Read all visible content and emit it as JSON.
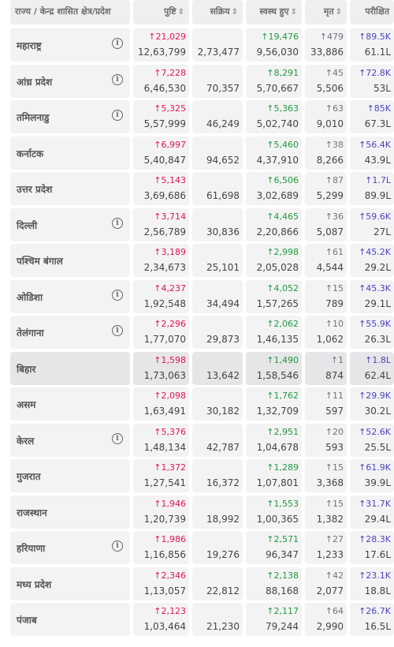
{
  "headers": {
    "state": "राज्य / केन्द्र शासित क्षेत्र/प्रदेश",
    "confirmed": "पुष्टि",
    "active": "सक्रिय",
    "recovered": "स्वस्थ हुए",
    "deceased": "मृत",
    "tested": "परीक्षित",
    "sort_glyph": "⇕"
  },
  "arrow": "↑",
  "info_glyph": "i",
  "colors": {
    "confirmed": "#e0174d",
    "recovered": "#1f9b3a",
    "deceased": "#6c757d",
    "tested": "#4b44b9"
  },
  "rows": [
    {
      "name": "महाराष्ट्र",
      "info": true,
      "conf_delta": "21,029",
      "conf": "12,63,799",
      "active": "2,73,477",
      "rec_delta": "19,476",
      "rec": "9,56,030",
      "dec_delta": "479",
      "dec": "33,886",
      "test_delta": "89.5K",
      "test": "61.1L"
    },
    {
      "name": "आंध्र प्रदेश",
      "info": true,
      "conf_delta": "7,228",
      "conf": "6,46,530",
      "active": "70,357",
      "rec_delta": "8,291",
      "rec": "5,70,667",
      "dec_delta": "45",
      "dec": "5,506",
      "test_delta": "72.8K",
      "test": "53L"
    },
    {
      "name": "तमिलनाडु",
      "info": true,
      "conf_delta": "5,325",
      "conf": "5,57,999",
      "active": "46,249",
      "rec_delta": "5,363",
      "rec": "5,02,740",
      "dec_delta": "63",
      "dec": "9,010",
      "test_delta": "85K",
      "test": "67.3L"
    },
    {
      "name": "कर्नाटक",
      "info": false,
      "conf_delta": "6,997",
      "conf": "5,40,847",
      "active": "94,652",
      "rec_delta": "5,460",
      "rec": "4,37,910",
      "dec_delta": "38",
      "dec": "8,266",
      "test_delta": "56.4K",
      "test": "43.9L"
    },
    {
      "name": "उत्तर प्रदेश",
      "info": false,
      "conf_delta": "5,143",
      "conf": "3,69,686",
      "active": "61,698",
      "rec_delta": "6,506",
      "rec": "3,02,689",
      "dec_delta": "87",
      "dec": "5,299",
      "test_delta": "1.7L",
      "test": "89.9L"
    },
    {
      "name": "दिल्ली",
      "info": true,
      "conf_delta": "3,714",
      "conf": "2,56,789",
      "active": "30,836",
      "rec_delta": "4,465",
      "rec": "2,20,866",
      "dec_delta": "36",
      "dec": "5,087",
      "test_delta": "59.6K",
      "test": "27L"
    },
    {
      "name": "पश्चिम बंगाल",
      "info": false,
      "conf_delta": "3,189",
      "conf": "2,34,673",
      "active": "25,101",
      "rec_delta": "2,998",
      "rec": "2,05,028",
      "dec_delta": "61",
      "dec": "4,544",
      "test_delta": "45.2K",
      "test": "29.2L"
    },
    {
      "name": "ओडिशा",
      "info": true,
      "conf_delta": "4,237",
      "conf": "1,92,548",
      "active": "34,494",
      "rec_delta": "4,052",
      "rec": "1,57,265",
      "dec_delta": "15",
      "dec": "789",
      "test_delta": "45.3K",
      "test": "29.1L"
    },
    {
      "name": "तेलंगाना",
      "info": true,
      "conf_delta": "2,296",
      "conf": "1,77,070",
      "active": "29,873",
      "rec_delta": "2,062",
      "rec": "1,46,135",
      "dec_delta": "10",
      "dec": "1,062",
      "test_delta": "55.9K",
      "test": "26.3L"
    },
    {
      "name": "बिहार",
      "info": false,
      "highlight": true,
      "conf_delta": "1,598",
      "conf": "1,73,063",
      "active": "13,642",
      "rec_delta": "1,490",
      "rec": "1,58,546",
      "dec_delta": "1",
      "dec": "874",
      "test_delta": "1.8L",
      "test": "62.4L"
    },
    {
      "name": "असम",
      "info": false,
      "conf_delta": "2,098",
      "conf": "1,63,491",
      "active": "30,182",
      "rec_delta": "1,762",
      "rec": "1,32,709",
      "dec_delta": "11",
      "dec": "597",
      "test_delta": "29.9K",
      "test": "30.2L"
    },
    {
      "name": "केरल",
      "info": true,
      "conf_delta": "5,376",
      "conf": "1,48,134",
      "active": "42,787",
      "rec_delta": "2,951",
      "rec": "1,04,678",
      "dec_delta": "20",
      "dec": "593",
      "test_delta": "52.6K",
      "test": "25.5L"
    },
    {
      "name": "गुजरात",
      "info": false,
      "conf_delta": "1,372",
      "conf": "1,27,541",
      "active": "16,372",
      "rec_delta": "1,289",
      "rec": "1,07,801",
      "dec_delta": "15",
      "dec": "3,368",
      "test_delta": "61.9K",
      "test": "39.9L"
    },
    {
      "name": "राजस्थान",
      "info": false,
      "conf_delta": "1,946",
      "conf": "1,20,739",
      "active": "18,992",
      "rec_delta": "1,553",
      "rec": "1,00,365",
      "dec_delta": "15",
      "dec": "1,382",
      "test_delta": "31.7K",
      "test": "29.4L"
    },
    {
      "name": "हरियाणा",
      "info": true,
      "conf_delta": "1,986",
      "conf": "1,16,856",
      "active": "19,276",
      "rec_delta": "2,571",
      "rec": "96,347",
      "dec_delta": "27",
      "dec": "1,233",
      "test_delta": "28.3K",
      "test": "17.6L"
    },
    {
      "name": "मध्य प्रदेश",
      "info": false,
      "conf_delta": "2,346",
      "conf": "1,13,057",
      "active": "22,812",
      "rec_delta": "2,138",
      "rec": "88,168",
      "dec_delta": "42",
      "dec": "2,077",
      "test_delta": "23.1K",
      "test": "18.8L"
    },
    {
      "name": "पंजाब",
      "info": false,
      "conf_delta": "2,123",
      "conf": "1,03,464",
      "active": "21,230",
      "rec_delta": "2,117",
      "rec": "79,244",
      "dec_delta": "64",
      "dec": "2,990",
      "test_delta": "26.7K",
      "test": "16.5L"
    }
  ]
}
